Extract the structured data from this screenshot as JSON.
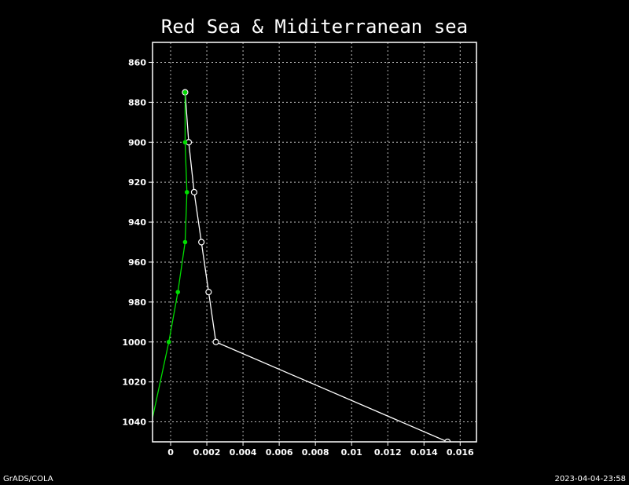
{
  "chart_data": {
    "type": "line",
    "title": "Red Sea & Miditerranean sea",
    "xlabel": "",
    "ylabel": "",
    "xlim": [
      -0.001,
      0.0169
    ],
    "ylim": [
      1050,
      850
    ],
    "y_inverted": true,
    "grid": true,
    "x_ticks": [
      0,
      0.002,
      0.004,
      0.006,
      0.008,
      0.01,
      0.012,
      0.014,
      0.016
    ],
    "x_tick_labels": [
      "0",
      "0.002",
      "0.004",
      "0.006",
      "0.008",
      "0.01",
      "0.012",
      "0.014",
      "0.016"
    ],
    "y_ticks": [
      860,
      880,
      900,
      920,
      940,
      960,
      980,
      1000,
      1020,
      1040
    ],
    "y_tick_labels": [
      "860",
      "880",
      "900",
      "920",
      "940",
      "960",
      "980",
      "1000",
      "1020",
      "1040"
    ],
    "series": [
      {
        "color": "#ffffff",
        "marker": "open-circle",
        "points": [
          {
            "x": 0.0008,
            "y": 875
          },
          {
            "x": 0.001,
            "y": 900
          },
          {
            "x": 0.0013,
            "y": 925
          },
          {
            "x": 0.0017,
            "y": 950
          },
          {
            "x": 0.0021,
            "y": 975
          },
          {
            "x": 0.0025,
            "y": 1000
          },
          {
            "x": 0.0153,
            "y": 1050
          }
        ]
      },
      {
        "color": "#00dd00",
        "marker": "filled-circle",
        "points": [
          {
            "x": 0.0008,
            "y": 875
          },
          {
            "x": 0.0008,
            "y": 900
          },
          {
            "x": 0.0009,
            "y": 925
          },
          {
            "x": 0.0008,
            "y": 950
          },
          {
            "x": 0.0004,
            "y": 975
          },
          {
            "x": -0.0001,
            "y": 1000
          },
          {
            "x": -0.001,
            "y": 1038
          }
        ]
      }
    ]
  },
  "footer": {
    "left": "GrADS/COLA",
    "right": "2023-04-04-23:58"
  }
}
